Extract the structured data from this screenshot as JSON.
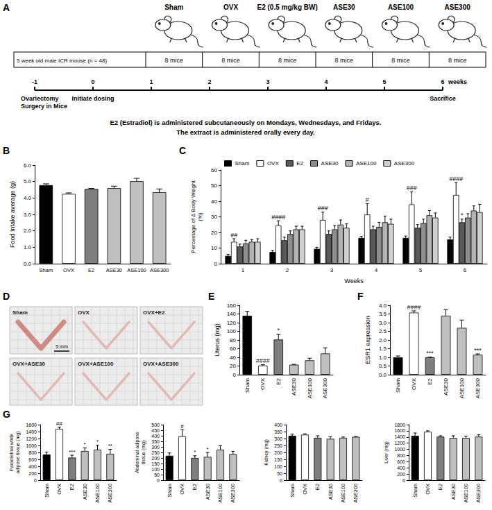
{
  "diagram": {
    "panel": "A",
    "groups": [
      "Sham",
      "OVX",
      "E2 (0.5 mg/kg BW)",
      "ASE30",
      "ASE100",
      "ASE300"
    ],
    "row_header": "5 week old male ICR mouse (n = 48)",
    "cells": [
      "8 mice",
      "8 mice",
      "8 mice",
      "8 mice",
      "8 mice",
      "8 mice"
    ],
    "timeline": {
      "ticks": [
        -1,
        0,
        1,
        2,
        3,
        4,
        5,
        6
      ],
      "unit": "weeks",
      "events": [
        {
          "week": -1,
          "label": "Ovariectomy Surgery in Mice"
        },
        {
          "week": 0,
          "label": "Initiate dosing"
        },
        {
          "week": 6,
          "label": "Sacrifice"
        }
      ]
    },
    "notes": [
      "E2 (Estradiol) is administered subcutaneously on Mondays, Wednesdays, and Fridays.",
      "The extract is administered orally every day."
    ]
  },
  "photo": {
    "panel": "D",
    "labels": [
      "Sham",
      "OVX",
      "OVX+E2",
      "OVX+ASE30",
      "OVX+ASE100",
      "OVX+ASE300"
    ],
    "scale_bar": "5 mm"
  },
  "chart_data": [
    {
      "panel": "B",
      "type": "bar",
      "categories": [
        "Sham",
        "OVX",
        "E2",
        "ASE30",
        "ASE100",
        "ASE300"
      ],
      "values": [
        4.78,
        4.25,
        4.55,
        4.6,
        5.02,
        4.35
      ],
      "errors": [
        0.08,
        0.06,
        0.03,
        0.12,
        0.18,
        0.2
      ],
      "colors": [
        "#000000",
        "#ffffff",
        "#7f7f7f",
        "#bfbfbf",
        "#bfbfbf",
        "#bfbfbf"
      ],
      "y_label": "Food Intake average (g)",
      "ylim": [
        0,
        6
      ],
      "yticks": [
        {
          "value": 0,
          "label": "0.0"
        },
        {
          "value": 1,
          "label": "1.0"
        },
        {
          "value": 2,
          "label": "2.0"
        },
        {
          "value": 3,
          "label": "3.0"
        },
        {
          "value": 4,
          "label": "4.0"
        },
        {
          "value": 5,
          "label": "5.0"
        },
        {
          "value": 6,
          "label": "6.0"
        }
      ],
      "grid": false
    },
    {
      "panel": "C",
      "type": "bar",
      "categories": [
        "1",
        "2",
        "3",
        "4",
        "5",
        "6"
      ],
      "x_label": "Weeks",
      "y_label": "Percentage of Δ Body Weight (%)",
      "ylim": [
        0,
        60
      ],
      "yticks": [
        0,
        10,
        20,
        30,
        40,
        50,
        60
      ],
      "legend": "top",
      "grid": false,
      "series": [
        {
          "name": "Sham",
          "color": "#000000",
          "values": [
            5,
            7.5,
            9.5,
            16.5,
            16.5,
            15.5
          ],
          "errors": [
            1,
            1,
            1,
            1,
            1.2,
            1.5
          ]
        },
        {
          "name": "OVX",
          "color": "#ffffff",
          "values": [
            14,
            24.5,
            28,
            31.5,
            38,
            44
          ],
          "errors": [
            2,
            3,
            5,
            7,
            8,
            8
          ],
          "annotations": [
            "##",
            "####",
            "###",
            "#",
            "###",
            "####"
          ]
        },
        {
          "name": "E2",
          "color": "#595959",
          "values": [
            11,
            15,
            19,
            22,
            23,
            26.5
          ],
          "errors": [
            1.5,
            2,
            2,
            2,
            2,
            2
          ],
          "annotations": [
            null,
            null,
            null,
            null,
            null,
            "*"
          ]
        },
        {
          "name": "ASE30",
          "color": "#8c8c8c",
          "values": [
            13,
            19,
            22,
            23.5,
            26,
            29.5
          ],
          "errors": [
            2,
            2,
            2.5,
            3,
            2.5,
            2.5
          ]
        },
        {
          "name": "ASE100",
          "color": "#b3b3b3",
          "values": [
            14,
            22,
            25,
            26.5,
            31,
            34
          ],
          "errors": [
            1.5,
            2,
            3,
            4,
            3,
            3
          ]
        },
        {
          "name": "ASE300",
          "color": "#d0d0d0",
          "values": [
            14,
            22,
            23,
            25.5,
            29.5,
            33
          ],
          "errors": [
            2,
            2,
            2.5,
            3,
            3,
            5
          ]
        }
      ]
    },
    {
      "panel": "E",
      "type": "bar",
      "categories": [
        "Sham",
        "OVX",
        "E2",
        "ASE30",
        "ASE100",
        "ASE300"
      ],
      "values": [
        136,
        21,
        81,
        23,
        33,
        49
      ],
      "errors": [
        10,
        2,
        12,
        1,
        5,
        13
      ],
      "annotations": [
        null,
        "####",
        "*",
        null,
        null,
        null
      ],
      "colors": [
        "#000000",
        "#ffffff",
        "#7f7f7f",
        "#bfbfbf",
        "#bfbfbf",
        "#bfbfbf"
      ],
      "y_label": "Uterus (mg)",
      "ylim": [
        0,
        160
      ],
      "yticks": [
        0,
        20,
        40,
        60,
        80,
        100,
        120,
        140,
        160
      ],
      "grid": false
    },
    {
      "panel": "F",
      "type": "bar",
      "categories": [
        "Sham",
        "OVX",
        "E2",
        "ASE30",
        "ASE100",
        "ASE300"
      ],
      "values": [
        1.0,
        3.58,
        1.0,
        3.4,
        2.7,
        1.15
      ],
      "errors": [
        0.08,
        0.1,
        0.02,
        0.35,
        0.45,
        0.05
      ],
      "annotations": [
        null,
        "####",
        "***",
        null,
        null,
        "***"
      ],
      "colors": [
        "#000000",
        "#ffffff",
        "#7f7f7f",
        "#bfbfbf",
        "#bfbfbf",
        "#bfbfbf"
      ],
      "y_label": "ESR1 expression",
      "ylim": [
        0,
        4
      ],
      "yticks": [
        {
          "value": 0,
          "label": "0.0"
        },
        {
          "value": 0.5,
          "label": "0.5"
        },
        {
          "value": 1,
          "label": "1.0"
        },
        {
          "value": 1.5,
          "label": "1.5"
        },
        {
          "value": 2,
          "label": "2.0"
        },
        {
          "value": 2.5,
          "label": "2.5"
        },
        {
          "value": 3,
          "label": "3.0"
        },
        {
          "value": 3.5,
          "label": "3.5"
        },
        {
          "value": 4,
          "label": "4.0"
        }
      ],
      "grid": false
    },
    {
      "panel": "G",
      "type": "bar",
      "categories": [
        "Sham",
        "OVX",
        "E2",
        "ASE30",
        "ASE100",
        "ASE300"
      ],
      "values": [
        740,
        1480,
        650,
        840,
        880,
        760
      ],
      "errors": [
        70,
        50,
        70,
        90,
        130,
        130
      ],
      "annotations": [
        null,
        "##",
        "***",
        "*",
        "*",
        "**"
      ],
      "colors": [
        "#000000",
        "#ffffff",
        "#7f7f7f",
        "#bfbfbf",
        "#bfbfbf",
        "#bfbfbf"
      ],
      "y_label": "Parametrial white adipose tissue (mg)",
      "ylim": [
        0,
        1600
      ],
      "yticks": [
        0,
        200,
        400,
        600,
        800,
        1000,
        1200,
        1400,
        1600
      ],
      "grid": false
    },
    {
      "type": "bar",
      "categories": [
        "Sham",
        "OVX",
        "E2",
        "ASE30",
        "ASE100",
        "ASE300"
      ],
      "values": [
        220,
        395,
        200,
        210,
        275,
        235
      ],
      "errors": [
        25,
        60,
        20,
        40,
        35,
        25
      ],
      "annotations": [
        null,
        "#",
        "*",
        "*",
        null,
        null
      ],
      "colors": [
        "#000000",
        "#ffffff",
        "#7f7f7f",
        "#bfbfbf",
        "#bfbfbf",
        "#bfbfbf"
      ],
      "y_label": "Abdominal adipose tissue (mg)",
      "ylim": [
        0,
        500
      ],
      "yticks": [
        0,
        50,
        100,
        150,
        200,
        250,
        300,
        350,
        400,
        450,
        500
      ],
      "grid": false
    },
    {
      "type": "bar",
      "categories": [
        "Sham",
        "OVX",
        "E2",
        "ASE30",
        "ASE100",
        "ASE300"
      ],
      "values": [
        320,
        328,
        305,
        298,
        305,
        312
      ],
      "errors": [
        12,
        6,
        15,
        15,
        6,
        3
      ],
      "colors": [
        "#000000",
        "#ffffff",
        "#7f7f7f",
        "#bfbfbf",
        "#bfbfbf",
        "#bfbfbf"
      ],
      "y_label": "Kidney (mg)",
      "ylim": [
        0,
        400
      ],
      "yticks": [
        0,
        50,
        100,
        150,
        200,
        250,
        300,
        350,
        400
      ],
      "grid": false
    },
    {
      "type": "bar",
      "categories": [
        "Sham",
        "OVX",
        "E2",
        "ASE30",
        "ASE100",
        "ASE300"
      ],
      "values": [
        1440,
        1570,
        1410,
        1370,
        1370,
        1410
      ],
      "errors": [
        90,
        30,
        30,
        70,
        60,
        60
      ],
      "colors": [
        "#000000",
        "#ffffff",
        "#7f7f7f",
        "#bfbfbf",
        "#bfbfbf",
        "#bfbfbf"
      ],
      "y_label": "Liver (mg)",
      "ylim": [
        0,
        1800
      ],
      "yticks": [
        0,
        200,
        400,
        600,
        800,
        1000,
        1200,
        1400,
        1600,
        1800
      ],
      "grid": false
    }
  ]
}
